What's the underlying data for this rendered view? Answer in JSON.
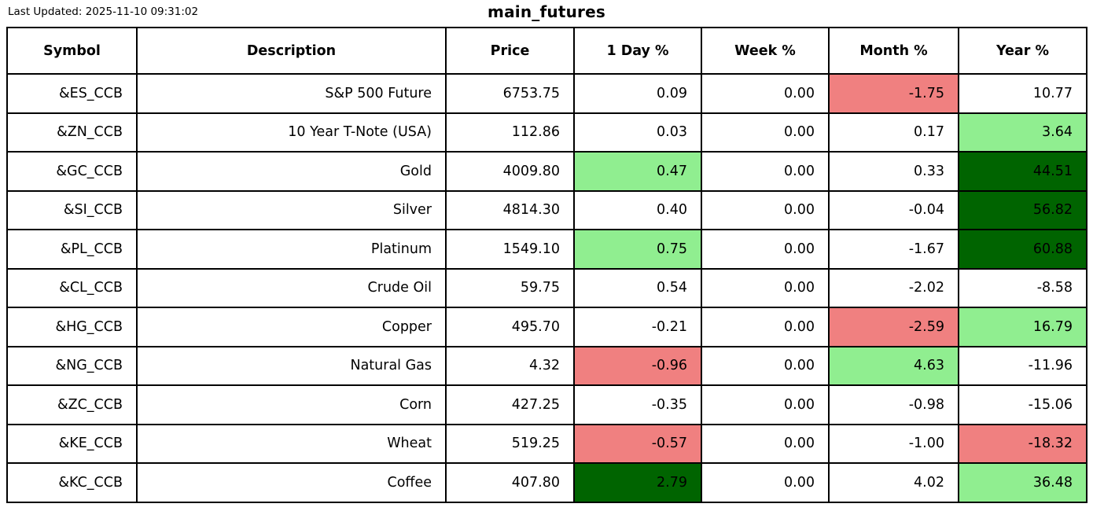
{
  "page": {
    "last_updated": "Last Updated: 2025-11-10 09:31:02",
    "title": "main_futures"
  },
  "colors": {
    "negative": "#f08080",
    "positive": "#90ee90",
    "strong_positive": "#006400"
  },
  "table": {
    "columns": [
      "Symbol",
      "Description",
      "Price",
      "1 Day %",
      "Week %",
      "Month %",
      "Year %"
    ],
    "col_keys": [
      "symbol",
      "description",
      "price",
      "day-pct",
      "week-pct",
      "month-pct",
      "year-pct"
    ],
    "rows": [
      {
        "cells": [
          {
            "text": "&ES_CCB"
          },
          {
            "text": "S&P 500 Future"
          },
          {
            "text": "6753.75"
          },
          {
            "text": "0.09"
          },
          {
            "text": "0.00"
          },
          {
            "text": "-1.75",
            "bg": "negative"
          },
          {
            "text": "10.77"
          }
        ]
      },
      {
        "cells": [
          {
            "text": "&ZN_CCB"
          },
          {
            "text": "10 Year T-Note (USA)"
          },
          {
            "text": "112.86"
          },
          {
            "text": "0.03"
          },
          {
            "text": "0.00"
          },
          {
            "text": "0.17"
          },
          {
            "text": "3.64",
            "bg": "positive"
          }
        ]
      },
      {
        "cells": [
          {
            "text": "&GC_CCB"
          },
          {
            "text": "Gold"
          },
          {
            "text": "4009.80"
          },
          {
            "text": "0.47",
            "bg": "positive"
          },
          {
            "text": "0.00"
          },
          {
            "text": "0.33"
          },
          {
            "text": "44.51",
            "bg": "strong_positive"
          }
        ]
      },
      {
        "cells": [
          {
            "text": "&SI_CCB"
          },
          {
            "text": "Silver"
          },
          {
            "text": "4814.30"
          },
          {
            "text": "0.40"
          },
          {
            "text": "0.00"
          },
          {
            "text": "-0.04"
          },
          {
            "text": "56.82",
            "bg": "strong_positive"
          }
        ]
      },
      {
        "cells": [
          {
            "text": "&PL_CCB"
          },
          {
            "text": "Platinum"
          },
          {
            "text": "1549.10"
          },
          {
            "text": "0.75",
            "bg": "positive"
          },
          {
            "text": "0.00"
          },
          {
            "text": "-1.67"
          },
          {
            "text": "60.88",
            "bg": "strong_positive"
          }
        ]
      },
      {
        "cells": [
          {
            "text": "&CL_CCB"
          },
          {
            "text": "Crude Oil"
          },
          {
            "text": "59.75"
          },
          {
            "text": "0.54"
          },
          {
            "text": "0.00"
          },
          {
            "text": "-2.02"
          },
          {
            "text": "-8.58"
          }
        ]
      },
      {
        "cells": [
          {
            "text": "&HG_CCB"
          },
          {
            "text": "Copper"
          },
          {
            "text": "495.70"
          },
          {
            "text": "-0.21"
          },
          {
            "text": "0.00"
          },
          {
            "text": "-2.59",
            "bg": "negative"
          },
          {
            "text": "16.79",
            "bg": "positive"
          }
        ]
      },
      {
        "cells": [
          {
            "text": "&NG_CCB"
          },
          {
            "text": "Natural Gas"
          },
          {
            "text": "4.32"
          },
          {
            "text": "-0.96",
            "bg": "negative"
          },
          {
            "text": "0.00"
          },
          {
            "text": "4.63",
            "bg": "positive"
          },
          {
            "text": "-11.96"
          }
        ]
      },
      {
        "cells": [
          {
            "text": "&ZC_CCB"
          },
          {
            "text": "Corn"
          },
          {
            "text": "427.25"
          },
          {
            "text": "-0.35"
          },
          {
            "text": "0.00"
          },
          {
            "text": "-0.98"
          },
          {
            "text": "-15.06"
          }
        ]
      },
      {
        "cells": [
          {
            "text": "&KE_CCB"
          },
          {
            "text": "Wheat"
          },
          {
            "text": "519.25"
          },
          {
            "text": "-0.57",
            "bg": "negative"
          },
          {
            "text": "0.00"
          },
          {
            "text": "-1.00"
          },
          {
            "text": "-18.32",
            "bg": "negative"
          }
        ]
      },
      {
        "cells": [
          {
            "text": "&KC_CCB"
          },
          {
            "text": "Coffee"
          },
          {
            "text": "407.80"
          },
          {
            "text": "2.79",
            "bg": "strong_positive"
          },
          {
            "text": "0.00"
          },
          {
            "text": "4.02"
          },
          {
            "text": "36.48",
            "bg": "positive"
          }
        ]
      }
    ]
  },
  "chart_data": {
    "type": "table",
    "title": "main_futures",
    "columns": [
      "Symbol",
      "Description",
      "Price",
      "1 Day %",
      "Week %",
      "Month %",
      "Year %"
    ],
    "rows": [
      [
        "&ES_CCB",
        "S&P 500 Future",
        6753.75,
        0.09,
        0.0,
        -1.75,
        10.77
      ],
      [
        "&ZN_CCB",
        "10 Year T-Note (USA)",
        112.86,
        0.03,
        0.0,
        0.17,
        3.64
      ],
      [
        "&GC_CCB",
        "Gold",
        4009.8,
        0.47,
        0.0,
        0.33,
        44.51
      ],
      [
        "&SI_CCB",
        "Silver",
        4814.3,
        0.4,
        0.0,
        -0.04,
        56.82
      ],
      [
        "&PL_CCB",
        "Platinum",
        1549.1,
        0.75,
        0.0,
        -1.67,
        60.88
      ],
      [
        "&CL_CCB",
        "Crude Oil",
        59.75,
        0.54,
        0.0,
        -2.02,
        -8.58
      ],
      [
        "&HG_CCB",
        "Copper",
        495.7,
        -0.21,
        0.0,
        -2.59,
        16.79
      ],
      [
        "&NG_CCB",
        "Natural Gas",
        4.32,
        -0.96,
        0.0,
        4.63,
        -11.96
      ],
      [
        "&ZC_CCB",
        "Corn",
        427.25,
        -0.35,
        0.0,
        -0.98,
        -15.06
      ],
      [
        "&KE_CCB",
        "Wheat",
        519.25,
        -0.57,
        0.0,
        -1.0,
        -18.32
      ],
      [
        "&KC_CCB",
        "Coffee",
        407.8,
        2.79,
        0.0,
        4.02,
        36.48
      ]
    ],
    "cell_highlights_legend": "red=#f08080 negative highlight, light green=#90ee90 positive highlight, dark green=#006400 strong positive highlight"
  }
}
